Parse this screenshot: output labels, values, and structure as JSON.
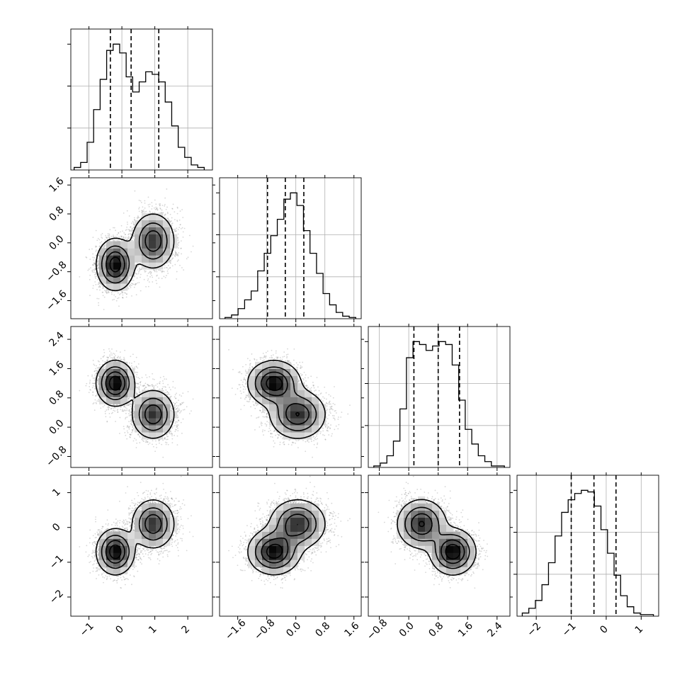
{
  "figure": {
    "type": "corner",
    "n_params": 4
  },
  "style": {
    "line_color": "#000000",
    "grid_color": "#b0b0b0",
    "scatter_color": "#8c8c8c",
    "background": "#ffffff"
  },
  "chart_data": {
    "type": "corner",
    "grid": true,
    "params": [
      {
        "index": 0,
        "range": [
          -1.55,
          2.75
        ],
        "ticks": [
          -1,
          0,
          1,
          2
        ],
        "tick_labels": [
          "−1",
          "0",
          "1",
          "2"
        ],
        "quantiles": [
          -0.35,
          0.28,
          1.12
        ]
      },
      {
        "index": 1,
        "range": [
          -2.1,
          1.8
        ],
        "ticks": [
          -1.6,
          -0.8,
          0.0,
          0.8,
          1.6
        ],
        "tick_labels": [
          "−1.6",
          "−0.8",
          "0.0",
          "0.8",
          "1.6"
        ],
        "quantiles": [
          -0.78,
          -0.29,
          0.22
        ]
      },
      {
        "index": 2,
        "range": [
          -1.1,
          2.75
        ],
        "ticks": [
          -0.8,
          0.0,
          0.8,
          1.6,
          2.4
        ],
        "tick_labels": [
          "−0.8",
          "0.0",
          "0.8",
          "1.6",
          "2.4"
        ],
        "quantiles": [
          0.14,
          0.8,
          1.38
        ]
      },
      {
        "index": 3,
        "range": [
          -2.55,
          1.5
        ],
        "ticks": [
          -2,
          -1,
          0,
          1
        ],
        "tick_labels": [
          "−2",
          "−1",
          "0",
          "1"
        ],
        "quantiles": [
          -1.0,
          -0.35,
          0.28
        ]
      }
    ],
    "modes": [
      {
        "weight": 0.5,
        "mean": [
          -0.2,
          -0.6,
          1.2,
          -0.7
        ],
        "sd": [
          0.28,
          0.35,
          0.3,
          0.32
        ]
      },
      {
        "weight": 0.5,
        "mean": [
          0.95,
          0.05,
          0.35,
          0.1
        ],
        "sd": [
          0.32,
          0.38,
          0.33,
          0.35
        ]
      }
    ],
    "histograms": [
      {
        "param": 0,
        "bins": [
          -1.45,
          2.5
        ],
        "counts": [
          2,
          6,
          22,
          48,
          72,
          95,
          100,
          93,
          74,
          62,
          70,
          78,
          76,
          70,
          54,
          35,
          18,
          10,
          4,
          2
        ]
      },
      {
        "param": 1,
        "bins": [
          -1.95,
          1.65
        ],
        "counts": [
          1,
          3,
          8,
          15,
          22,
          38,
          52,
          66,
          79,
          95,
          100,
          90,
          70,
          52,
          36,
          20,
          11,
          5,
          2,
          1
        ]
      },
      {
        "param": 2,
        "bins": [
          -0.95,
          2.6
        ],
        "counts": [
          1,
          3,
          8,
          18,
          40,
          75,
          86,
          84,
          80,
          83,
          86,
          84,
          70,
          46,
          26,
          16,
          8,
          4,
          1,
          1
        ]
      },
      {
        "param": 3,
        "bins": [
          -2.4,
          1.35
        ],
        "counts": [
          2,
          5,
          10,
          20,
          34,
          51,
          66,
          74,
          78,
          80,
          79,
          70,
          55,
          40,
          26,
          13,
          6,
          2,
          1,
          1
        ]
      }
    ]
  }
}
